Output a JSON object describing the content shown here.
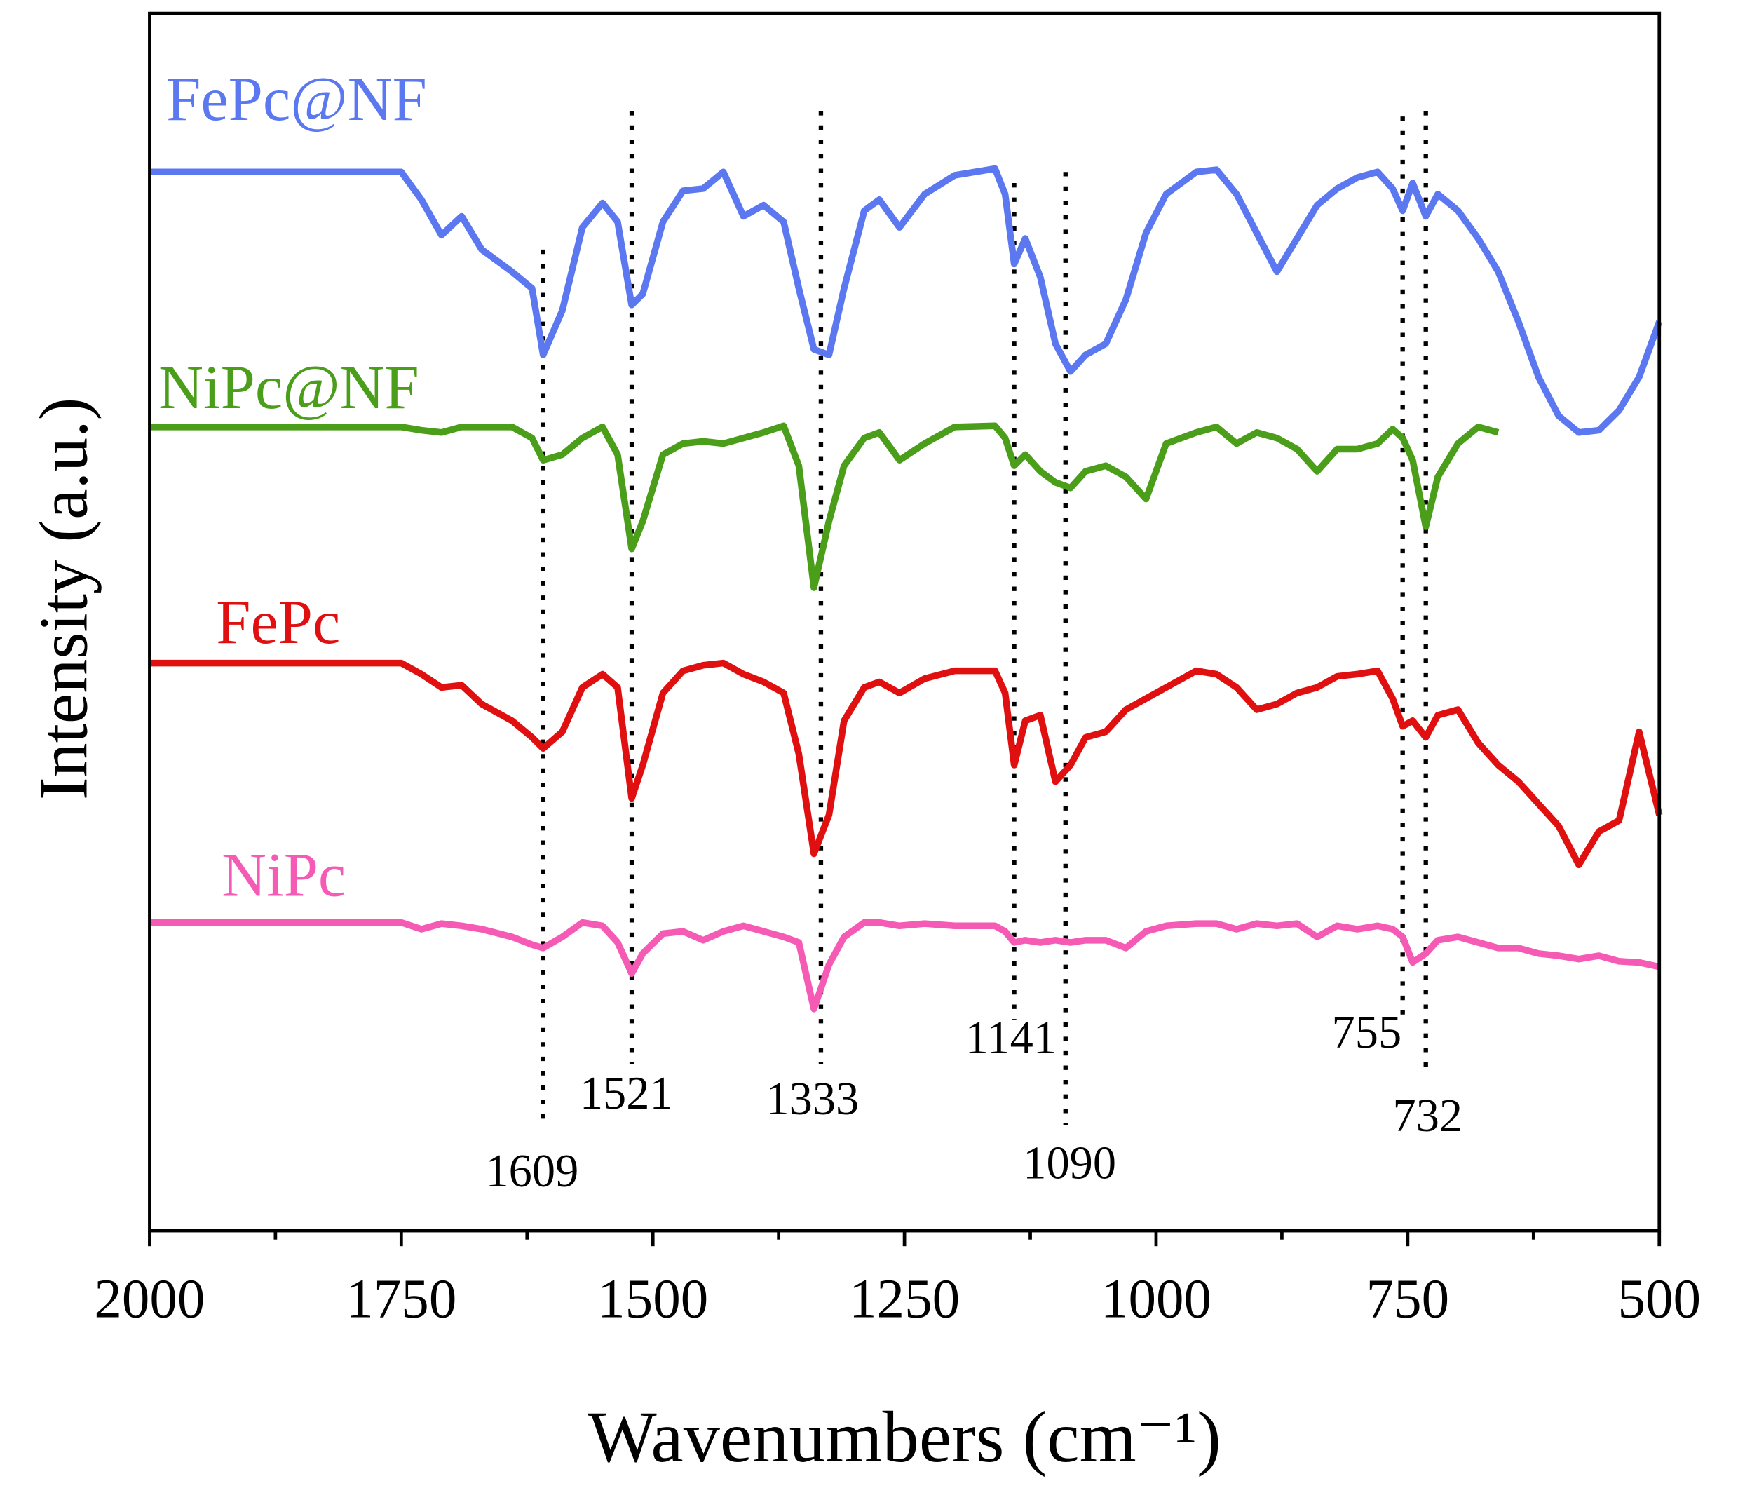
{
  "chart_data": {
    "type": "line",
    "xlabel": "Wavenumbers (cm⁻¹)",
    "ylabel": "Intensity (a.u.)",
    "xlim": [
      2000,
      500
    ],
    "xticks": [
      2000,
      1750,
      1500,
      1250,
      1000,
      750,
      500
    ],
    "xminorticks": [
      1875,
      1625,
      1375,
      1125,
      875,
      625
    ],
    "ylim": [
      0,
      109.8
    ],
    "peaks": [
      1609,
      1521,
      1333,
      1141,
      1090,
      755,
      732
    ],
    "x": [
      2000,
      1750,
      1730,
      1710,
      1690,
      1670,
      1640,
      1620,
      1609,
      1590,
      1570,
      1550,
      1535,
      1521,
      1510,
      1490,
      1470,
      1450,
      1430,
      1410,
      1390,
      1370,
      1355,
      1340,
      1325,
      1310,
      1290,
      1275,
      1255,
      1230,
      1200,
      1160,
      1150,
      1141,
      1130,
      1115,
      1100,
      1085,
      1070,
      1050,
      1030,
      1010,
      990,
      960,
      940,
      920,
      900,
      880,
      860,
      840,
      820,
      800,
      780,
      765,
      755,
      745,
      732,
      720,
      700,
      680,
      660,
      640,
      620,
      600,
      580,
      560,
      540,
      520,
      500
    ],
    "series": [
      {
        "name": "FePc@NF",
        "color": "#5b78f0",
        "values": [
          95.5,
          95.5,
          93,
          89.8,
          91.5,
          88.5,
          86.5,
          85,
          79,
          83,
          90.5,
          92.7,
          91,
          83.5,
          84.5,
          91,
          93.8,
          94,
          95.5,
          91.5,
          92.5,
          91,
          85,
          79.5,
          79,
          85,
          92,
          93,
          90.5,
          93.5,
          95.2,
          95.8,
          93.5,
          87.2,
          89.5,
          86,
          80,
          77.5,
          79,
          80,
          84,
          90,
          93.5,
          95.5,
          95.7,
          93.5,
          90,
          86.5,
          89.5,
          92.5,
          94,
          95,
          95.5,
          94,
          92,
          94.5,
          91.5,
          93.5,
          92,
          89.5,
          86.5,
          82,
          77,
          73.5,
          72,
          72.2,
          74,
          77,
          82
        ]
      },
      {
        "name": "NiPc@NF",
        "color": "#4b9e1a",
        "values": [
          72.5,
          72.5,
          72.2,
          72,
          72.5,
          72.5,
          72.5,
          71.5,
          69.5,
          70,
          71.5,
          72.5,
          70,
          61.5,
          64,
          70,
          71,
          71.2,
          71,
          71.5,
          72,
          72.6,
          69,
          58,
          64,
          69,
          71.5,
          72,
          69.5,
          71,
          72.5,
          72.6,
          71.5,
          69,
          70,
          68.5,
          67.5,
          67,
          68.5,
          69,
          68,
          66,
          71,
          72,
          72.5,
          71,
          72,
          71.5,
          70.5,
          68.5,
          70.5,
          70.5,
          71,
          72.3,
          71.5,
          69.5,
          63.5,
          68,
          71,
          72.5,
          72,
          null,
          null,
          null,
          null,
          null,
          null,
          null,
          null
        ]
      },
      {
        "name": "FePc",
        "color": "#e01010",
        "values": [
          51.2,
          51.2,
          50.2,
          49,
          49.2,
          47.5,
          46,
          44.5,
          43.5,
          45,
          49,
          50.2,
          49,
          39,
          42,
          48.5,
          50.5,
          51,
          51.2,
          50.2,
          49.5,
          48.5,
          43,
          34,
          37.5,
          46,
          49,
          49.5,
          48.5,
          49.8,
          50.5,
          50.5,
          48.5,
          42,
          46,
          46.5,
          40.5,
          42,
          44.5,
          45,
          47,
          48,
          49,
          50.5,
          50.2,
          49,
          47,
          47.5,
          48.5,
          49,
          50,
          50.2,
          50.5,
          48,
          45.5,
          46,
          44.5,
          46.5,
          47,
          44,
          42,
          40.5,
          38.5,
          36.5,
          33,
          36,
          37,
          45,
          37.5
        ]
      },
      {
        "name": "NiPc",
        "color": "#f55bb5",
        "values": [
          27.8,
          27.8,
          27.2,
          27.7,
          27.5,
          27.2,
          26.5,
          25.8,
          25.5,
          26.5,
          27.8,
          27.5,
          26,
          23.2,
          25,
          26.8,
          27,
          26.2,
          27,
          27.5,
          27,
          26.5,
          26,
          20,
          24,
          26.5,
          27.8,
          27.8,
          27.5,
          27.7,
          27.5,
          27.5,
          27,
          26,
          26.2,
          26,
          26.2,
          26,
          26.2,
          26.2,
          25.5,
          27,
          27.5,
          27.7,
          27.7,
          27.2,
          27.7,
          27.5,
          27.7,
          26.5,
          27.5,
          27.2,
          27.5,
          27.2,
          26.5,
          24.2,
          25,
          26.2,
          26.5,
          26,
          25.5,
          25.5,
          25,
          24.8,
          24.5,
          24.8,
          24.3,
          24.2,
          23.8
        ]
      }
    ]
  }
}
